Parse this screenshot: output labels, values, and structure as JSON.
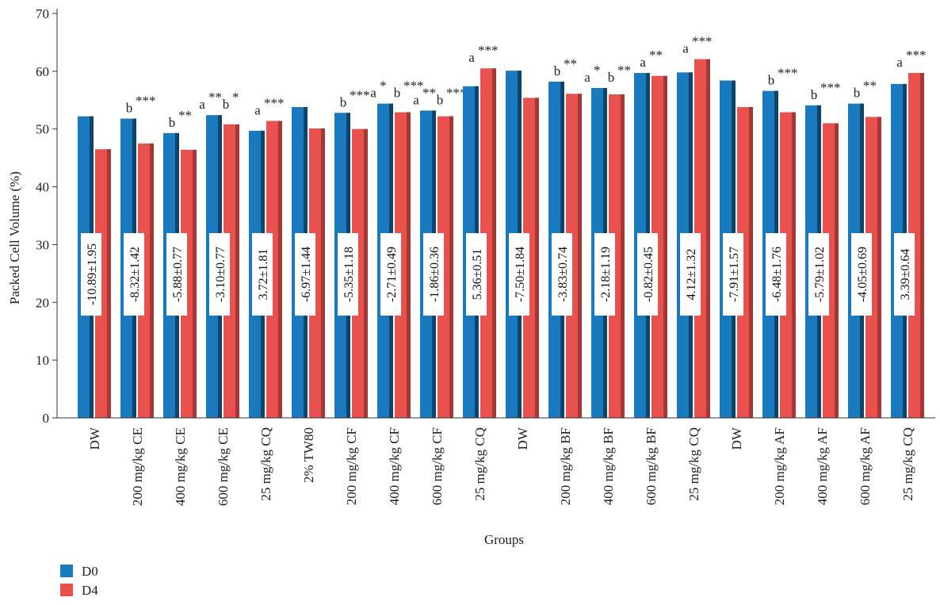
{
  "chart_data": {
    "type": "bar",
    "xlabel": "Groups",
    "ylabel": "Packed Cell Volume (%)",
    "ylim": [
      0,
      70
    ],
    "yticks": [
      0,
      10,
      20,
      30,
      40,
      50,
      60,
      70
    ],
    "grid": false,
    "legend_position": "bottom-left",
    "categories": [
      "DW",
      "200 mg/kg CE",
      "400 mg/kg CE",
      "600 mg/kg CE",
      "25 mg/kg CQ",
      "2% TW80",
      "200 mg/kg CF",
      "400 mg/kg CF",
      "600 mg/kg CF",
      "25 mg/kg CQ",
      "DW",
      "200 mg/kg BF",
      "400 mg/kg BF",
      "600 mg/kg BF",
      "25 mg/kg CQ",
      "DW",
      "200 mg/kg AF",
      "400 mg/kg AF",
      "600 mg/kg AF",
      "25 mg/kg CQ"
    ],
    "series": [
      {
        "name": "D0",
        "color": "#1a7ac0",
        "values": [
          52.2,
          51.8,
          49.3,
          52.4,
          49.7,
          53.8,
          52.8,
          54.4,
          53.2,
          57.4,
          60.1,
          58.2,
          57.1,
          59.7,
          59.8,
          58.4,
          56.6,
          54.1,
          54.4,
          57.8
        ]
      },
      {
        "name": "D4",
        "color": "#e8514e",
        "values": [
          46.5,
          47.5,
          46.4,
          50.8,
          51.4,
          50.1,
          50.0,
          52.9,
          52.2,
          60.5,
          55.4,
          56.1,
          56.0,
          59.2,
          62.1,
          53.8,
          52.9,
          51.0,
          52.1,
          59.7
        ]
      }
    ],
    "change_labels": [
      "-10.89±1.95",
      "-8.32±1.42",
      "-5.88±0.77",
      "-3.10±0.77",
      "3.72±1.81",
      "-6.97±1.44",
      "-5.35±1.18",
      "-2.71±0.49",
      "-1.86±0.36",
      "5.36±0.51",
      "-7.50±1.84",
      "-3.83±0.74",
      "-2.18±1.19",
      "-0.82±0.45",
      "4.12±1.32",
      "-7.91±1.57",
      "-6.48±1.76",
      "-5.79±1.02",
      "-4.05±0.69",
      "3.39±0.64"
    ],
    "significance": [
      [],
      [
        {
          "t": "b",
          "s": "***"
        }
      ],
      [
        {
          "t": "b",
          "s": "**"
        }
      ],
      [
        {
          "t": "a",
          "s": "**"
        },
        {
          "t": "b",
          "s": "*"
        }
      ],
      [
        {
          "t": "a",
          "s": "***"
        }
      ],
      [],
      [
        {
          "t": "b",
          "s": "***"
        }
      ],
      [
        {
          "t": "a",
          "s": "*"
        },
        {
          "t": "b",
          "s": "***"
        }
      ],
      [
        {
          "t": "a",
          "s": "**"
        },
        {
          "t": "b",
          "s": "***"
        }
      ],
      [
        {
          "t": "a",
          "s": "***"
        }
      ],
      [],
      [
        {
          "t": "b",
          "s": "**"
        }
      ],
      [
        {
          "t": "a",
          "s": "*"
        },
        {
          "t": "b",
          "s": "**"
        }
      ],
      [
        {
          "t": "a",
          "s": "**"
        }
      ],
      [
        {
          "t": "a",
          "s": "***"
        }
      ],
      [],
      [
        {
          "t": "b",
          "s": "***"
        }
      ],
      [
        {
          "t": "b",
          "s": "***"
        }
      ],
      [
        {
          "t": "b",
          "s": "**"
        }
      ],
      [
        {
          "t": "a",
          "s": "***"
        }
      ]
    ]
  }
}
